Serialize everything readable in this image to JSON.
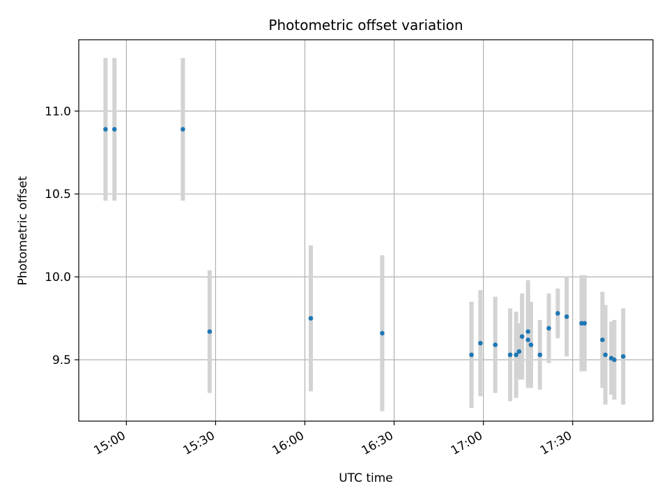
{
  "chart_data": {
    "type": "scatter",
    "title": "Photometric offset variation",
    "xlabel": "UTC time",
    "ylabel": "Photometric offset",
    "x_axis": "time (HH:MM UTC)",
    "xlim": [
      "14:44",
      "17:57"
    ],
    "ylim": [
      9.13,
      11.43
    ],
    "x_ticks": [
      "15:00",
      "15:30",
      "16:00",
      "16:30",
      "17:00",
      "17:30"
    ],
    "y_ticks": [
      "9.5",
      "10.0",
      "10.5",
      "11.0"
    ],
    "grid": true,
    "marker_color": "#1f77b4",
    "errorbar_color": "#d3d3d3",
    "points": [
      {
        "x": "14:53",
        "y": 10.89,
        "err": 0.43
      },
      {
        "x": "14:56",
        "y": 10.89,
        "err": 0.43
      },
      {
        "x": "15:19",
        "y": 10.89,
        "err": 0.43
      },
      {
        "x": "15:28",
        "y": 9.67,
        "err": 0.37
      },
      {
        "x": "16:02",
        "y": 9.75,
        "err": 0.44
      },
      {
        "x": "16:26",
        "y": 9.66,
        "err": 0.47
      },
      {
        "x": "16:56",
        "y": 9.53,
        "err": 0.32
      },
      {
        "x": "16:59",
        "y": 9.6,
        "err": 0.32
      },
      {
        "x": "17:04",
        "y": 9.59,
        "err": 0.29
      },
      {
        "x": "17:09",
        "y": 9.53,
        "err": 0.28
      },
      {
        "x": "17:11",
        "y": 9.53,
        "err": 0.26
      },
      {
        "x": "17:12",
        "y": 9.55,
        "err": 0.17
      },
      {
        "x": "17:13",
        "y": 9.64,
        "err": 0.26
      },
      {
        "x": "17:15",
        "y": 9.67,
        "err": 0.31
      },
      {
        "x": "17:15",
        "y": 9.62,
        "err": 0.29
      },
      {
        "x": "17:16",
        "y": 9.59,
        "err": 0.26
      },
      {
        "x": "17:19",
        "y": 9.53,
        "err": 0.21
      },
      {
        "x": "17:22",
        "y": 9.69,
        "err": 0.21
      },
      {
        "x": "17:25",
        "y": 9.78,
        "err": 0.15
      },
      {
        "x": "17:28",
        "y": 9.76,
        "err": 0.24
      },
      {
        "x": "17:33",
        "y": 9.72,
        "err": 0.29
      },
      {
        "x": "17:34",
        "y": 9.72,
        "err": 0.29
      },
      {
        "x": "17:40",
        "y": 9.62,
        "err": 0.29
      },
      {
        "x": "17:41",
        "y": 9.53,
        "err": 0.3
      },
      {
        "x": "17:43",
        "y": 9.51,
        "err": 0.22
      },
      {
        "x": "17:44",
        "y": 9.5,
        "err": 0.24
      },
      {
        "x": "17:47",
        "y": 9.52,
        "err": 0.29
      }
    ]
  }
}
